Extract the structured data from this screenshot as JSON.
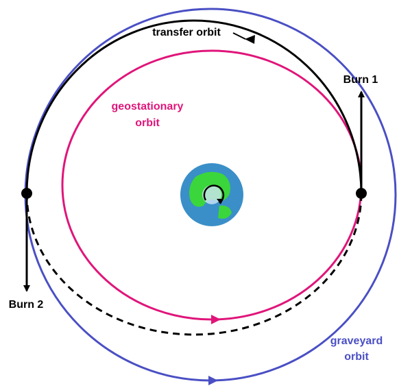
{
  "labels": {
    "transfer_orbit": "transfer orbit",
    "burn_1": "Burn 1",
    "burn_2": "Burn 2",
    "geostationary_orbit": [
      "geostationary",
      "orbit"
    ],
    "graveyard_orbit": [
      "graveyard",
      "orbit"
    ]
  }
}
